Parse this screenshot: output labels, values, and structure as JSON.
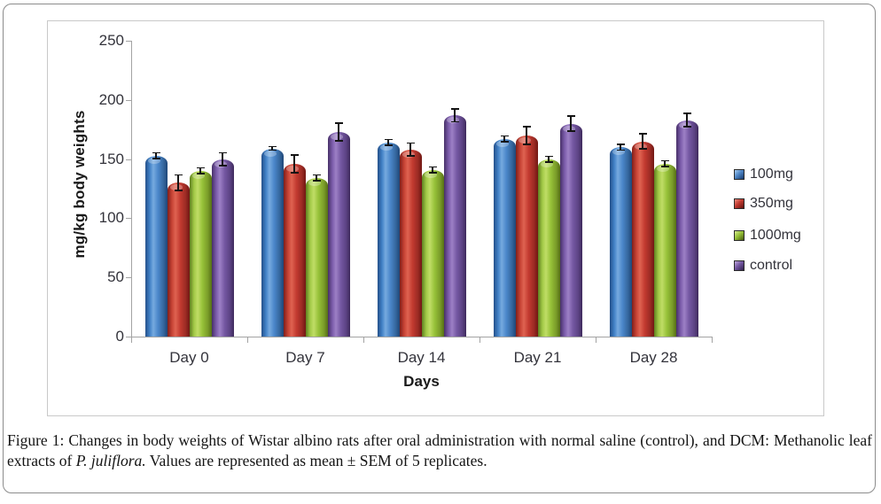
{
  "caption": {
    "label": "Figure 1:",
    "before_italic": " Changes in body weights of Wistar albino rats after oral administration with normal saline (control), and DCM: Methanolic leaf extracts of ",
    "italic": "P. juliflora.",
    "after_italic": " Values are represented as mean ± SEM of 5 replicates."
  },
  "chart_data": {
    "type": "bar",
    "title": "",
    "xlabel": "Days",
    "ylabel": "mg/kg body weights",
    "categories": [
      "Day 0",
      "Day 7",
      "Day 14",
      "Day 21",
      "Day 28"
    ],
    "series": [
      {
        "name": "100mg",
        "color": "#4a86c9",
        "values": [
          153,
          159,
          164,
          167,
          160
        ],
        "sem": [
          3,
          2,
          3,
          3,
          3
        ]
      },
      {
        "name": "350mg",
        "color": "#c23a30",
        "values": [
          130,
          146,
          158,
          170,
          165
        ],
        "sem": [
          7,
          8,
          6,
          8,
          7
        ]
      },
      {
        "name": "1000mg",
        "color": "#96c138",
        "values": [
          140,
          134,
          141,
          150,
          146
        ],
        "sem": [
          3,
          3,
          3,
          3,
          3
        ]
      },
      {
        "name": "control",
        "color": "#7457a2",
        "values": [
          150,
          173,
          187,
          180,
          183
        ],
        "sem": [
          6,
          8,
          6,
          7,
          6
        ]
      }
    ],
    "ylim": [
      0,
      250
    ],
    "yticks": [
      0,
      50,
      100,
      150,
      200,
      250
    ],
    "grid": false,
    "error_bars": true,
    "legend_position": "right",
    "error_bar_color": "#141414",
    "axis_color": "#a3a3a3"
  }
}
